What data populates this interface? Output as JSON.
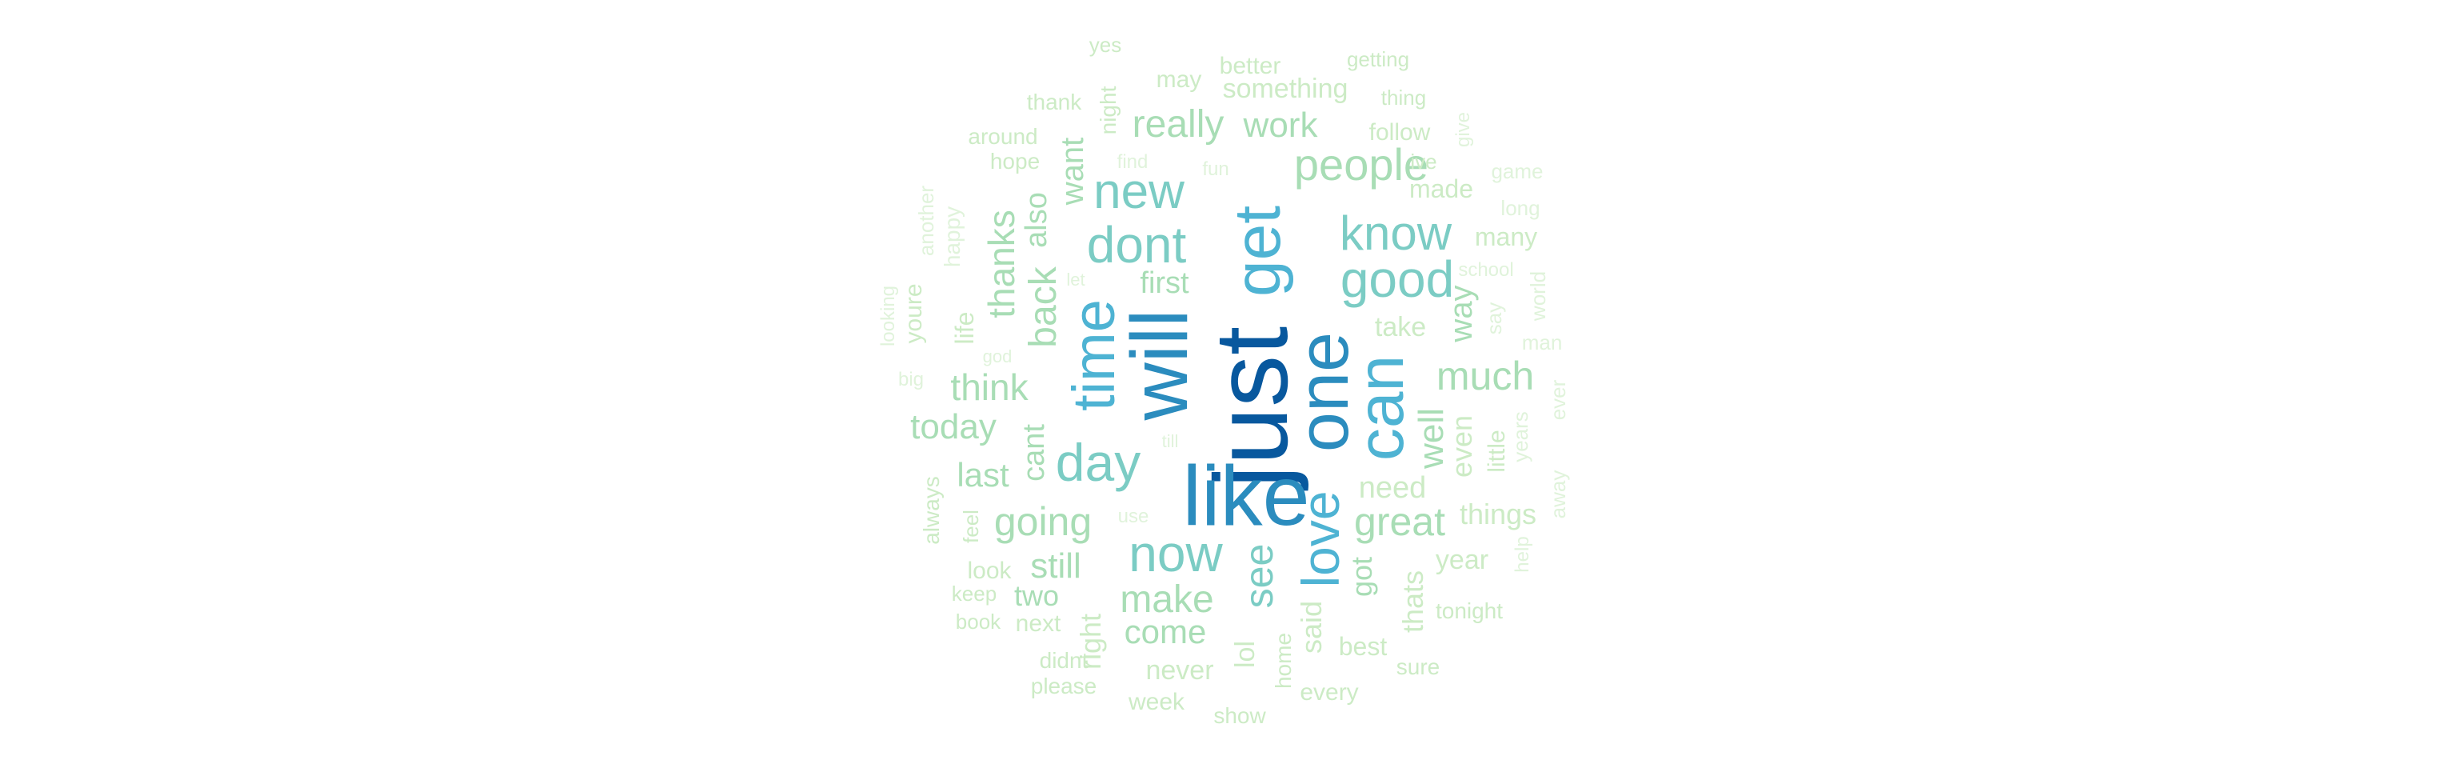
{
  "palette": {
    "c1": "#08589e",
    "c2": "#2b8cbe",
    "c3": "#4eb3d3",
    "c4": "#7bccc4",
    "c5": "#a8ddb5",
    "c6": "#ccebc5",
    "c7": "#e0f3db"
  },
  "words": [
    {
      "text": "just",
      "color": "c1"
    },
    {
      "text": "like",
      "color": "c2"
    },
    {
      "text": "will",
      "color": "c2"
    },
    {
      "text": "one",
      "color": "c2"
    },
    {
      "text": "can",
      "color": "c3"
    },
    {
      "text": "get",
      "color": "c3"
    },
    {
      "text": "time",
      "color": "c3"
    },
    {
      "text": "love",
      "color": "c3"
    },
    {
      "text": "day",
      "color": "c4"
    },
    {
      "text": "now",
      "color": "c4"
    },
    {
      "text": "dont",
      "color": "c4"
    },
    {
      "text": "new",
      "color": "c4"
    },
    {
      "text": "good",
      "color": "c4"
    },
    {
      "text": "know",
      "color": "c4"
    },
    {
      "text": "people",
      "color": "c5"
    },
    {
      "text": "see",
      "color": "c4"
    },
    {
      "text": "great",
      "color": "c5"
    },
    {
      "text": "much",
      "color": "c5"
    },
    {
      "text": "going",
      "color": "c5"
    },
    {
      "text": "make",
      "color": "c5"
    },
    {
      "text": "really",
      "color": "c5"
    },
    {
      "text": "back",
      "color": "c5"
    },
    {
      "text": "think",
      "color": "c5"
    },
    {
      "text": "today",
      "color": "c5"
    },
    {
      "text": "thanks",
      "color": "c5"
    },
    {
      "text": "well",
      "color": "c5"
    },
    {
      "text": "work",
      "color": "c5"
    },
    {
      "text": "still",
      "color": "c5"
    },
    {
      "text": "come",
      "color": "c5"
    },
    {
      "text": "last",
      "color": "c5"
    },
    {
      "text": "want",
      "color": "c5"
    },
    {
      "text": "also",
      "color": "c5"
    },
    {
      "text": "cant",
      "color": "c5"
    },
    {
      "text": "first",
      "color": "c5"
    },
    {
      "text": "way",
      "color": "c5"
    },
    {
      "text": "need",
      "color": "c6"
    },
    {
      "text": "got",
      "color": "c5"
    },
    {
      "text": "two",
      "color": "c5"
    },
    {
      "text": "even",
      "color": "c6"
    },
    {
      "text": "things",
      "color": "c6"
    },
    {
      "text": "right",
      "color": "c6"
    },
    {
      "text": "thats",
      "color": "c6"
    },
    {
      "text": "said",
      "color": "c6"
    },
    {
      "text": "take",
      "color": "c6"
    },
    {
      "text": "never",
      "color": "c6"
    },
    {
      "text": "lol",
      "color": "c6"
    },
    {
      "text": "year",
      "color": "c6"
    },
    {
      "text": "best",
      "color": "c6"
    },
    {
      "text": "something",
      "color": "c6"
    },
    {
      "text": "better",
      "color": "c6"
    },
    {
      "text": "may",
      "color": "c6"
    },
    {
      "text": "made",
      "color": "c6"
    },
    {
      "text": "life",
      "color": "c6"
    },
    {
      "text": "many",
      "color": "c6"
    },
    {
      "text": "little",
      "color": "c6"
    },
    {
      "text": "week",
      "color": "c6"
    },
    {
      "text": "follow",
      "color": "c6"
    },
    {
      "text": "next",
      "color": "c6"
    },
    {
      "text": "look",
      "color": "c6"
    },
    {
      "text": "every",
      "color": "c6"
    },
    {
      "text": "show",
      "color": "c6"
    },
    {
      "text": "night",
      "color": "c6"
    },
    {
      "text": "youre",
      "color": "c6"
    },
    {
      "text": "around",
      "color": "c6"
    },
    {
      "text": "hope",
      "color": "c6"
    },
    {
      "text": "thank",
      "color": "c6"
    },
    {
      "text": "happy",
      "color": "c7"
    },
    {
      "text": "another",
      "color": "c7"
    },
    {
      "text": "always",
      "color": "c6"
    },
    {
      "text": "didnt",
      "color": "c6"
    },
    {
      "text": "please",
      "color": "c6"
    },
    {
      "text": "tonight",
      "color": "c6"
    },
    {
      "text": "sure",
      "color": "c6"
    },
    {
      "text": "home",
      "color": "c6"
    },
    {
      "text": "feel",
      "color": "c6"
    },
    {
      "text": "keep",
      "color": "c6"
    },
    {
      "text": "book",
      "color": "c6"
    },
    {
      "text": "years",
      "color": "c7"
    },
    {
      "text": "say",
      "color": "c7"
    },
    {
      "text": "school",
      "color": "c7"
    },
    {
      "text": "world",
      "color": "c7"
    },
    {
      "text": "man",
      "color": "c7"
    },
    {
      "text": "ever",
      "color": "c7"
    },
    {
      "text": "away",
      "color": "c7"
    },
    {
      "text": "help",
      "color": "c7"
    },
    {
      "text": "long",
      "color": "c7"
    },
    {
      "text": "game",
      "color": "c7"
    },
    {
      "text": "give",
      "color": "c7"
    },
    {
      "text": "ive",
      "color": "c6"
    },
    {
      "text": "thing",
      "color": "c6"
    },
    {
      "text": "getting",
      "color": "c6"
    },
    {
      "text": "yes",
      "color": "c6"
    },
    {
      "text": "find",
      "color": "c7"
    },
    {
      "text": "fun",
      "color": "c7"
    },
    {
      "text": "let",
      "color": "c7"
    },
    {
      "text": "god",
      "color": "c7"
    },
    {
      "text": "big",
      "color": "c7"
    },
    {
      "text": "looking",
      "color": "c7"
    },
    {
      "text": "use",
      "color": "c7"
    },
    {
      "text": "till",
      "color": "c7"
    }
  ]
}
